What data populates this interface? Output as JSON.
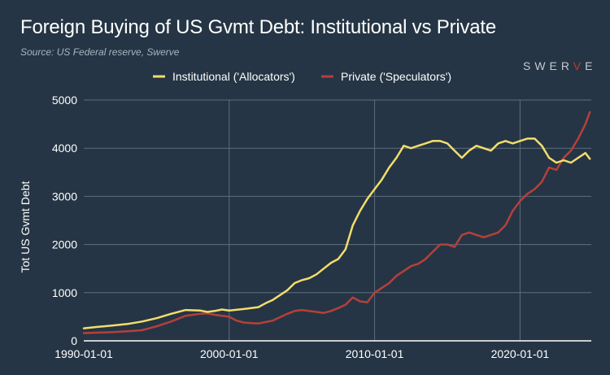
{
  "header": {
    "title": "Foreign Buying of US Gvmt Debt: Institutional vs Private",
    "source": "Source: US Federal reserve, Swerve"
  },
  "logo": {
    "text_before": "SWER",
    "text_accent": "V",
    "text_after": "E",
    "accent_color": "#c0392b"
  },
  "colors": {
    "background": "#253545",
    "grid": "#5f6e7c",
    "institutional": "#f2dd6c",
    "private": "#b5403a"
  },
  "chart_data": {
    "type": "line",
    "title": "Foreign Buying of US Gvmt Debt: Institutional vs Private",
    "subtitle": "Source: US Federal reserve, Swerve",
    "xlabel": "",
    "ylabel": "Tot US Gvmt Debt",
    "xlim": [
      1990.0,
      2024.9
    ],
    "ylim": [
      0,
      5000
    ],
    "x_ticks": [
      "1990-01-01",
      "2000-01-01",
      "2010-01-01",
      "2020-01-01"
    ],
    "y_ticks": [
      "0",
      "1000",
      "2000",
      "3000",
      "4000",
      "5000"
    ],
    "grid": true,
    "legend_position": "top-center",
    "series": [
      {
        "name": "Institutional ('Allocators')",
        "x": [
          1990.0,
          1991.0,
          1992.0,
          1993.0,
          1994.0,
          1995.0,
          1996.0,
          1997.0,
          1998.0,
          1998.5,
          1999.0,
          1999.5,
          2000.0,
          2001.0,
          2002.0,
          2002.5,
          2003.0,
          2004.0,
          2004.5,
          2005.0,
          2005.5,
          2006.0,
          2006.5,
          2007.0,
          2007.5,
          2008.0,
          2008.5,
          2009.0,
          2009.5,
          2010.0,
          2010.5,
          2011.0,
          2011.5,
          2012.0,
          2012.5,
          2013.0,
          2013.5,
          2014.0,
          2014.5,
          2015.0,
          2015.5,
          2016.0,
          2016.5,
          2017.0,
          2017.5,
          2018.0,
          2018.5,
          2019.0,
          2019.5,
          2020.0,
          2020.5,
          2021.0,
          2021.5,
          2022.0,
          2022.5,
          2023.0,
          2023.5,
          2024.0,
          2024.5,
          2024.8
        ],
        "values": [
          260,
          290,
          320,
          350,
          400,
          470,
          560,
          640,
          630,
          600,
          620,
          650,
          630,
          660,
          700,
          780,
          850,
          1050,
          1200,
          1260,
          1300,
          1380,
          1500,
          1620,
          1700,
          1900,
          2400,
          2700,
          2950,
          3150,
          3350,
          3600,
          3800,
          4050,
          4000,
          4050,
          4100,
          4150,
          4150,
          4100,
          3950,
          3800,
          3950,
          4050,
          4000,
          3950,
          4100,
          4150,
          4100,
          4150,
          4200,
          4200,
          4050,
          3800,
          3700,
          3750,
          3700,
          3800,
          3900,
          3780
        ]
      },
      {
        "name": "Private ('Speculators')",
        "x": [
          1990.0,
          1991.0,
          1992.0,
          1993.0,
          1994.0,
          1995.0,
          1996.0,
          1997.0,
          1998.0,
          1998.5,
          1999.0,
          1999.5,
          2000.0,
          2000.5,
          2001.0,
          2002.0,
          2003.0,
          2004.0,
          2004.5,
          2005.0,
          2005.5,
          2006.0,
          2006.5,
          2007.0,
          2007.5,
          2008.0,
          2008.5,
          2009.0,
          2009.5,
          2010.0,
          2010.5,
          2011.0,
          2011.5,
          2012.0,
          2012.5,
          2013.0,
          2013.5,
          2014.0,
          2014.5,
          2015.0,
          2015.5,
          2016.0,
          2016.5,
          2017.0,
          2017.5,
          2018.0,
          2018.5,
          2019.0,
          2019.5,
          2020.0,
          2020.5,
          2021.0,
          2021.5,
          2022.0,
          2022.5,
          2023.0,
          2023.5,
          2024.0,
          2024.5,
          2024.8
        ],
        "values": [
          160,
          170,
          180,
          200,
          220,
          300,
          400,
          520,
          560,
          570,
          540,
          520,
          500,
          420,
          380,
          360,
          420,
          560,
          620,
          640,
          620,
          600,
          580,
          620,
          680,
          750,
          900,
          820,
          800,
          1000,
          1100,
          1200,
          1350,
          1450,
          1550,
          1600,
          1700,
          1850,
          2000,
          2000,
          1950,
          2200,
          2250,
          2200,
          2150,
          2200,
          2250,
          2400,
          2700,
          2900,
          3050,
          3150,
          3300,
          3600,
          3550,
          3800,
          3950,
          4200,
          4500,
          4750
        ]
      }
    ]
  }
}
